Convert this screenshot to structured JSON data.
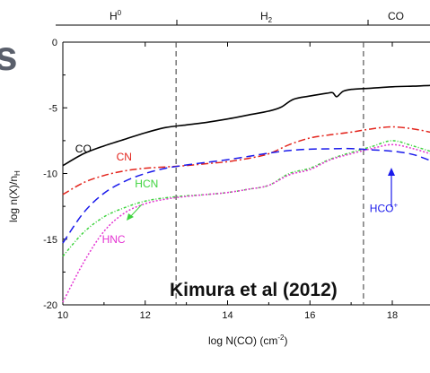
{
  "chart_data": {
    "type": "line",
    "title": "",
    "xlabel": "log N(CO) (cm",
    "xlabel_sup": "-2",
    "xlabel_close": ")",
    "ylabel": "log n(X)/n",
    "ylabel_sub": "H",
    "xlim": [
      10,
      19
    ],
    "ylim": [
      -20,
      0
    ],
    "x_ticks": [
      10,
      12,
      14,
      16,
      18
    ],
    "x_tick_labels": [
      "10",
      "12",
      "14",
      "16",
      "18"
    ],
    "y_ticks": [
      0,
      -5,
      -10,
      -15,
      -20
    ],
    "y_tick_labels": [
      "0",
      "-5",
      "-10",
      "-15",
      "-20"
    ],
    "grid": false,
    "vlines": [
      12.75,
      17.3
    ],
    "regions": [
      {
        "label": "H",
        "sup": "0",
        "x": 11.4
      },
      {
        "label": "H",
        "sub": "2",
        "x": 15.0
      },
      {
        "label": "CO",
        "sub": "",
        "x": 18.2
      }
    ],
    "series": [
      {
        "name": "CO",
        "color": "#000000",
        "dash": "solid",
        "x": [
          10,
          10.5,
          11,
          11.5,
          12,
          12.5,
          13,
          13.5,
          14,
          14.5,
          15,
          15.3,
          15.6,
          16,
          16.4,
          16.55,
          16.65,
          16.8,
          17,
          17.5,
          18,
          18.5,
          19
        ],
        "y": [
          -9.4,
          -8.5,
          -7.9,
          -7.4,
          -6.9,
          -6.5,
          -6.3,
          -6.1,
          -5.85,
          -5.55,
          -5.25,
          -4.95,
          -4.35,
          -4.1,
          -3.9,
          -3.85,
          -4.15,
          -3.75,
          -3.6,
          -3.5,
          -3.4,
          -3.35,
          -3.3
        ]
      },
      {
        "name": "CN",
        "color": "#e3231b",
        "dash": "8,3,2,3",
        "x": [
          10,
          10.5,
          11,
          11.5,
          12,
          12.5,
          13,
          13.5,
          14,
          14.5,
          15,
          15.5,
          16,
          16.5,
          17,
          17.5,
          18,
          18.5,
          19
        ],
        "y": [
          -11.6,
          -10.7,
          -10.15,
          -9.8,
          -9.6,
          -9.5,
          -9.4,
          -9.25,
          -9.1,
          -8.85,
          -8.5,
          -7.8,
          -7.3,
          -7.05,
          -6.85,
          -6.6,
          -6.45,
          -6.6,
          -6.85
        ]
      },
      {
        "name": "HCN",
        "color": "#3ed33e",
        "dash": "3,2,1,2",
        "x": [
          10,
          10.5,
          11,
          11.5,
          12,
          12.5,
          13,
          13.5,
          14,
          14.5,
          15,
          15.5,
          16,
          16.5,
          17,
          17.5,
          18,
          18.5,
          19
        ],
        "y": [
          -16.3,
          -14.5,
          -13.3,
          -12.6,
          -12.1,
          -11.85,
          -11.7,
          -11.6,
          -11.45,
          -11.2,
          -10.9,
          -10.0,
          -9.6,
          -8.9,
          -8.4,
          -7.95,
          -7.5,
          -7.9,
          -8.3
        ]
      },
      {
        "name": "HNC",
        "color": "#e433d2",
        "dash": "2,2",
        "x": [
          10,
          10.5,
          11,
          11.5,
          12,
          12.5,
          13,
          13.5,
          14,
          14.5,
          15,
          15.5,
          16,
          16.5,
          17,
          17.5,
          18,
          18.5,
          19
        ],
        "y": [
          -19.8,
          -16.8,
          -14.4,
          -13.0,
          -12.3,
          -11.95,
          -11.75,
          -11.6,
          -11.45,
          -11.2,
          -10.9,
          -10.1,
          -9.7,
          -8.95,
          -8.5,
          -8.1,
          -7.8,
          -8.1,
          -8.5
        ]
      },
      {
        "name": "HCO",
        "name_sup": "+",
        "color": "#1a1aeb",
        "dash": "9,5",
        "x": [
          10,
          10.5,
          11,
          11.5,
          12,
          12.5,
          13,
          13.5,
          14,
          14.5,
          15,
          15.5,
          16,
          16.5,
          17,
          17.5,
          18,
          18.5,
          19
        ],
        "y": [
          -15.3,
          -13.0,
          -11.5,
          -10.6,
          -10.0,
          -9.6,
          -9.35,
          -9.15,
          -8.95,
          -8.7,
          -8.45,
          -8.25,
          -8.15,
          -8.12,
          -8.1,
          -8.2,
          -8.3,
          -8.55,
          -9.0
        ]
      }
    ],
    "annotations": {
      "citation": "Kimura et al (2012)",
      "partial_title": "s"
    },
    "label_positions_data": {
      "CO": [
        10.3,
        -8.4
      ],
      "CN": [
        11.3,
        -9.0
      ],
      "HCN": [
        11.75,
        -11.05
      ],
      "HNC": [
        10.95,
        -15.3
      ],
      "HCO+": [
        17.45,
        -12.95
      ]
    }
  }
}
